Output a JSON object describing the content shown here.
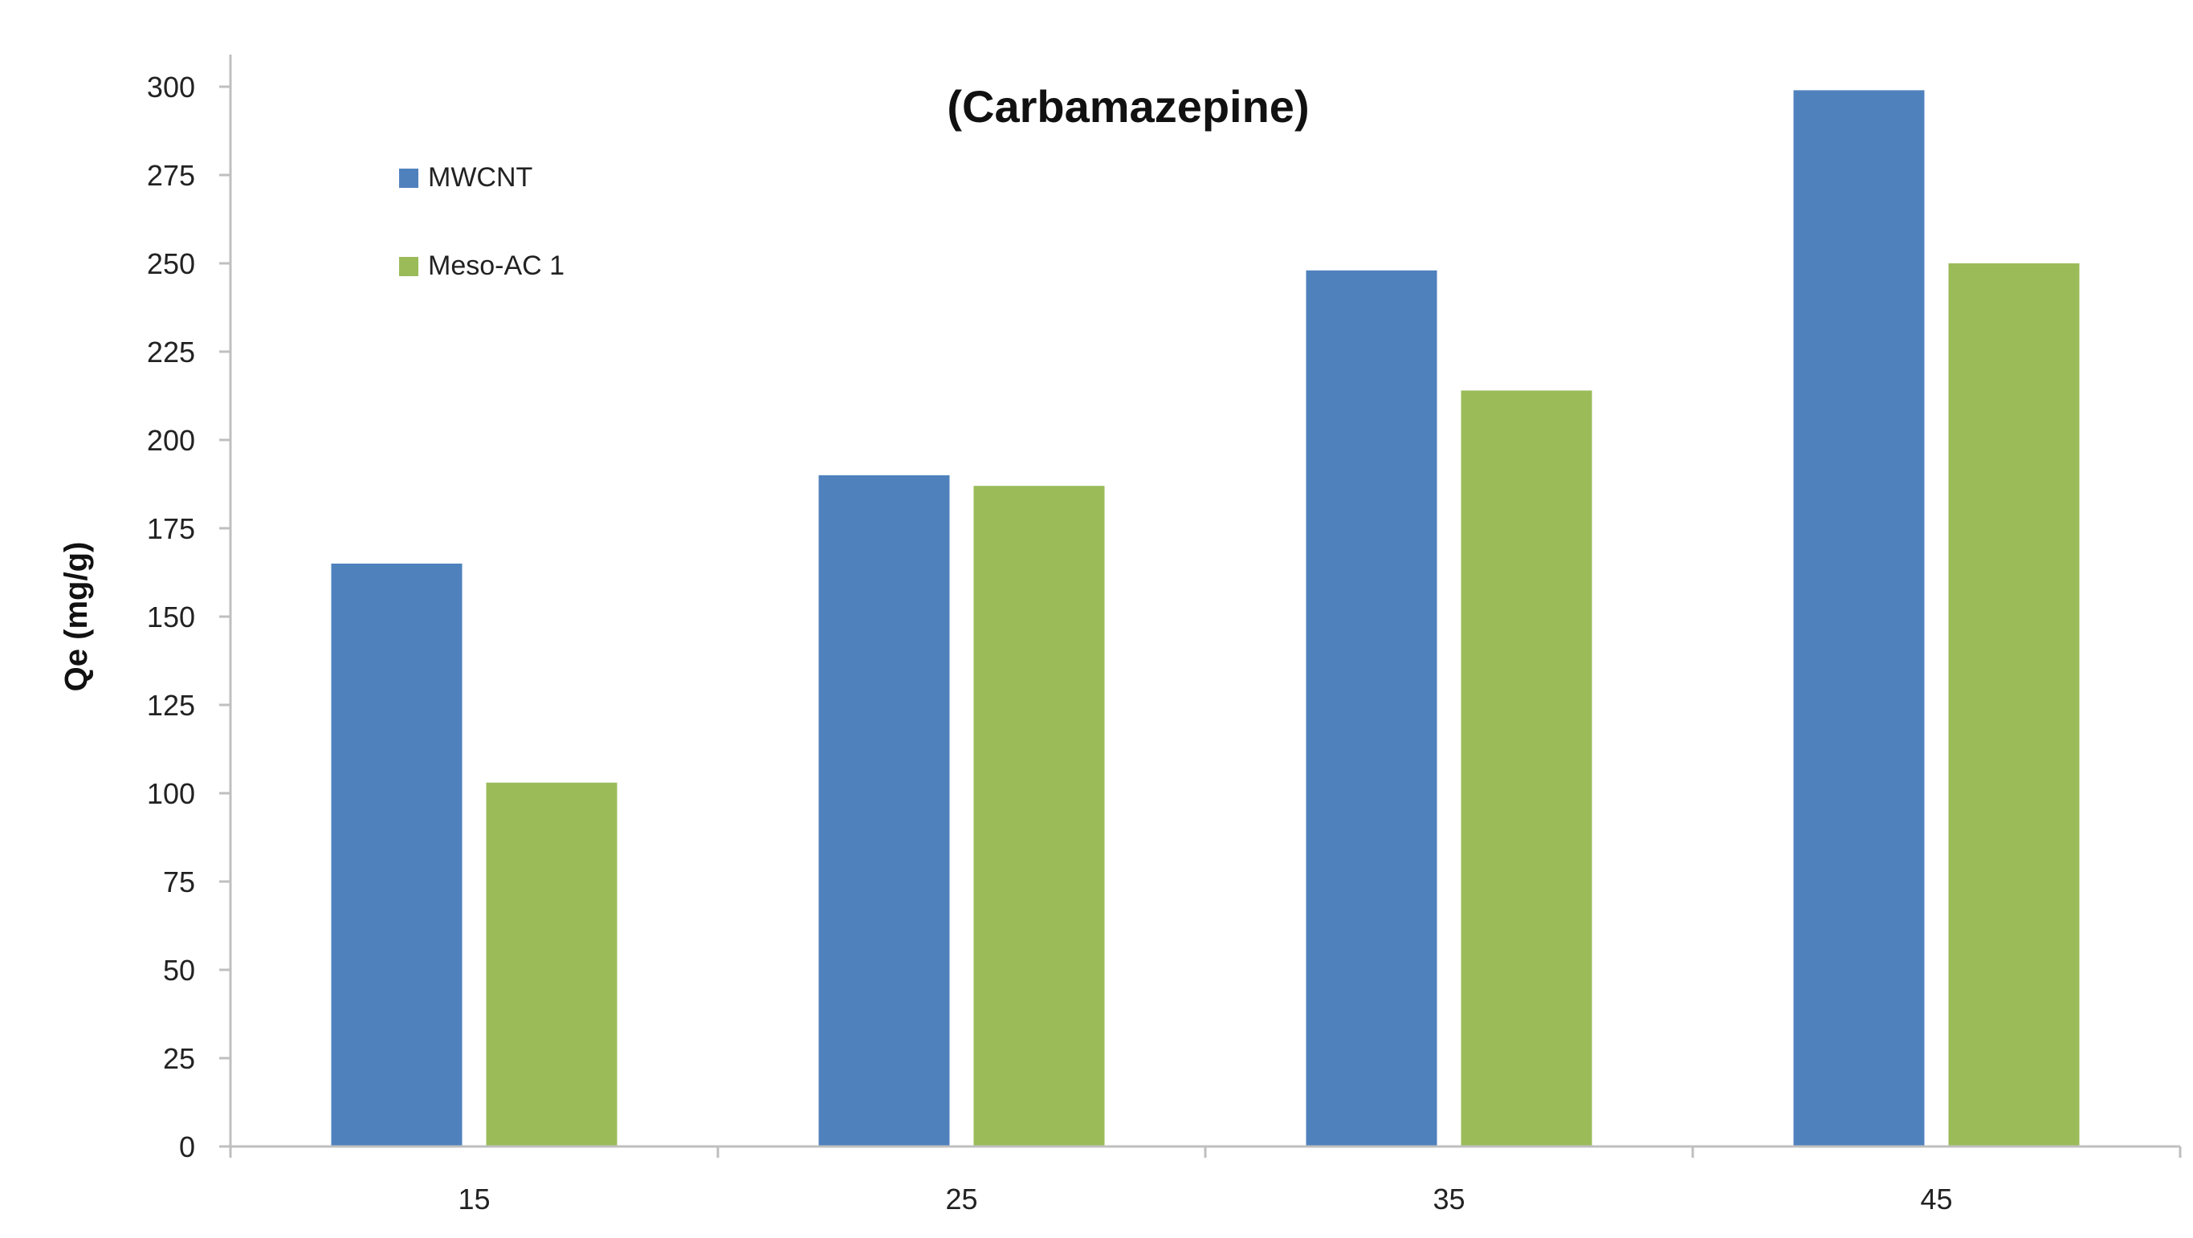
{
  "chart_data": {
    "type": "bar",
    "title": "(Carbamazepine)",
    "xlabel": "",
    "ylabel": "Qe (mg/g)",
    "categories": [
      "15",
      "25",
      "35",
      "45"
    ],
    "series": [
      {
        "name": "MWCNT",
        "color": "#4f81bd",
        "values": [
          165,
          190,
          248,
          299
        ]
      },
      {
        "name": "Meso-AC 1",
        "color": "#9bbb59",
        "values": [
          103,
          187,
          214,
          250
        ]
      }
    ],
    "ylim": [
      0,
      300
    ],
    "yticks": [
      "0",
      "25",
      "50",
      "75",
      "100",
      "125",
      "150",
      "175",
      "200",
      "225",
      "250",
      "275",
      "300"
    ],
    "grid": false,
    "legend_position": "top-left"
  }
}
